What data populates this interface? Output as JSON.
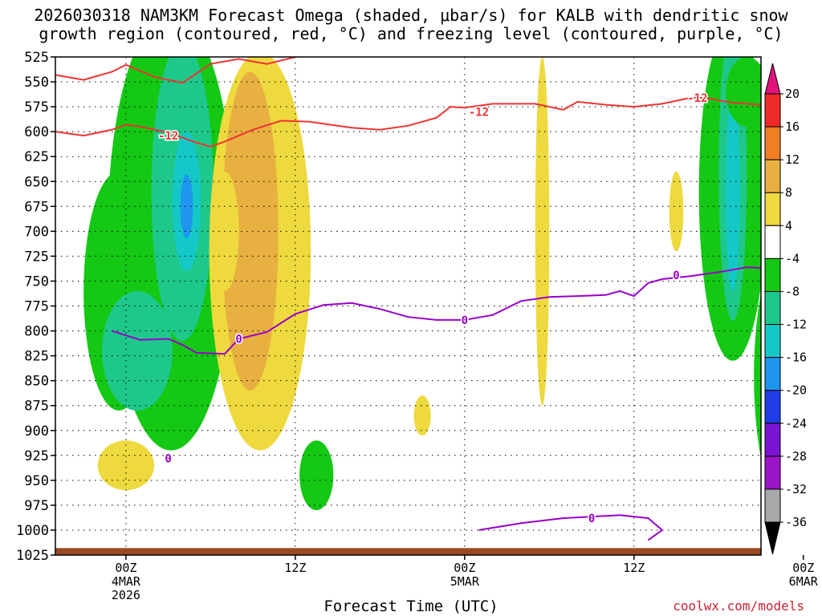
{
  "title_line1": "2026030318 NAM3KM Forecast Omega (shaded, μbar/s) for KALB with dendritic snow",
  "title_line2": "growth region (contoured, red, °C) and freezing level (contoured, purple, °C)",
  "xlabel": "Forecast Time (UTC)",
  "credit": "coolwx.com/models",
  "chart_data": {
    "type": "heatmap",
    "title": "2026030318 NAM3KM Forecast Omega (shaded, μbar/s) for KALB with dendritic snow growth region (contoured, red, °C) and freezing level (contoured, purple, °C)",
    "xlabel": "Forecast Time (UTC)",
    "ylabel": "Pressure (hPa)",
    "yticks": [
      525,
      550,
      575,
      600,
      625,
      650,
      675,
      700,
      725,
      750,
      775,
      800,
      825,
      850,
      875,
      900,
      925,
      950,
      975,
      1000,
      1025
    ],
    "ylim": [
      525,
      1025
    ],
    "xlim_hours": [
      -5,
      45
    ],
    "xticks": [
      {
        "hour": 0,
        "lines": [
          "00Z",
          "4MAR",
          "2026"
        ]
      },
      {
        "hour": 12,
        "lines": [
          "12Z"
        ]
      },
      {
        "hour": 24,
        "lines": [
          "00Z",
          "5MAR"
        ]
      },
      {
        "hour": 36,
        "lines": [
          "12Z"
        ]
      },
      {
        "hour": 48,
        "lines": [
          "00Z",
          "6MAR"
        ]
      }
    ],
    "colorbar": {
      "label_values": [
        20,
        16,
        12,
        8,
        4,
        -4,
        -8,
        -12,
        -16,
        -20,
        -24,
        -28,
        -32,
        -36
      ],
      "bands": [
        {
          "range": [
            16,
            20
          ],
          "color": "#ef2a2a"
        },
        {
          "range": [
            12,
            16
          ],
          "color": "#f07e22"
        },
        {
          "range": [
            8,
            12
          ],
          "color": "#e8b040"
        },
        {
          "range": [
            4,
            8
          ],
          "color": "#eed93e"
        },
        {
          "range": [
            -4,
            4
          ],
          "color": "#ffffff"
        },
        {
          "range": [
            -8,
            -4
          ],
          "color": "#14c814"
        },
        {
          "range": [
            -12,
            -8
          ],
          "color": "#1ec88a"
        },
        {
          "range": [
            -16,
            -12
          ],
          "color": "#14c8c8"
        },
        {
          "range": [
            -20,
            -16
          ],
          "color": "#1e96f0"
        },
        {
          "range": [
            -24,
            -20
          ],
          "color": "#1e3ce8"
        },
        {
          "range": [
            -28,
            -24
          ],
          "color": "#7a14d2"
        },
        {
          "range": [
            -32,
            -28
          ],
          "color": "#9c14c8"
        },
        {
          "range": [
            -36,
            -32
          ],
          "color": "#a8a8a8"
        }
      ],
      "top_cap_color": "#e0147a",
      "bottom_cap_color": "#000000"
    },
    "omega_features": [
      {
        "name": "upward motion column near 04Z",
        "center_hour": 4.5,
        "p_range": [
          525,
          920
        ],
        "peak": -20
      },
      {
        "name": "subsidence column near 09Z",
        "center_hour": 9.5,
        "p_range": [
          525,
          860
        ],
        "peak": 12
      },
      {
        "name": "upward motion band near 43Z",
        "center_hour": 43,
        "p_range": [
          525,
          830
        ],
        "peak": -16
      },
      {
        "name": "upward motion near surface 47Z",
        "center_hour": 47,
        "p_range": [
          700,
          990
        ],
        "peak": -8
      }
    ],
    "contour_labels": [
      {
        "text": "-12",
        "hour": 3,
        "p": 604,
        "color": "#ee3333"
      },
      {
        "text": "-12",
        "hour": 25,
        "p": 580,
        "color": "#ee3333"
      },
      {
        "text": "-12",
        "hour": 40.5,
        "p": 566,
        "color": "#ee3333"
      },
      {
        "text": "0",
        "hour": 8,
        "p": 808,
        "color": "#9900cc"
      },
      {
        "text": "0",
        "hour": 24,
        "p": 789,
        "color": "#9900cc"
      },
      {
        "text": "0",
        "hour": 39,
        "p": 744,
        "color": "#9900cc"
      },
      {
        "text": "0",
        "hour": 3,
        "p": 928,
        "color": "#9900cc"
      },
      {
        "text": "0",
        "hour": 33,
        "p": 988,
        "color": "#9900cc"
      }
    ],
    "dgz_top_isotherm_minus12": [
      [
        -5,
        543
      ],
      [
        -3,
        548
      ],
      [
        -1,
        540
      ],
      [
        0,
        533
      ],
      [
        2,
        545
      ],
      [
        4,
        551
      ],
      [
        6,
        532
      ],
      [
        8,
        527
      ],
      [
        10,
        532
      ],
      [
        12,
        525
      ]
    ],
    "dgz_bottom_isotherm_minus12": [
      [
        -5,
        600
      ],
      [
        -3,
        604
      ],
      [
        -1,
        598
      ],
      [
        0,
        593
      ],
      [
        1,
        595
      ],
      [
        3,
        601
      ],
      [
        5,
        611
      ],
      [
        6,
        615
      ],
      [
        7,
        610
      ],
      [
        9,
        598
      ],
      [
        11,
        589
      ],
      [
        13,
        590
      ],
      [
        16,
        596
      ],
      [
        18,
        598
      ],
      [
        20,
        594
      ],
      [
        22,
        586
      ],
      [
        23,
        575
      ],
      [
        24,
        576
      ],
      [
        26,
        572
      ],
      [
        29,
        572
      ],
      [
        31,
        578
      ],
      [
        32,
        570
      ],
      [
        34,
        573
      ],
      [
        36,
        575
      ],
      [
        38,
        572
      ],
      [
        40,
        566
      ],
      [
        41,
        566
      ],
      [
        43,
        571
      ],
      [
        45,
        573
      ],
      [
        46,
        566
      ],
      [
        47,
        557
      ],
      [
        48,
        551
      ],
      [
        49,
        557
      ],
      [
        50,
        560
      ],
      [
        52,
        553
      ],
      [
        54,
        549
      ],
      [
        55,
        553
      ]
    ],
    "freezing_level_0C": [
      [
        -1,
        800
      ],
      [
        1,
        809
      ],
      [
        3,
        808
      ],
      [
        4,
        814
      ],
      [
        5,
        822
      ],
      [
        7,
        823
      ],
      [
        8,
        808
      ],
      [
        10,
        801
      ],
      [
        12,
        783
      ],
      [
        14,
        774
      ],
      [
        16,
        772
      ],
      [
        18,
        778
      ],
      [
        20,
        786
      ],
      [
        22,
        789
      ],
      [
        24,
        789
      ],
      [
        26,
        784
      ],
      [
        28,
        770
      ],
      [
        30,
        766
      ],
      [
        32,
        765
      ],
      [
        34,
        764
      ],
      [
        35,
        760
      ],
      [
        36,
        765
      ],
      [
        37,
        752
      ],
      [
        38,
        748
      ],
      [
        40,
        745
      ],
      [
        42,
        741
      ],
      [
        44,
        736
      ],
      [
        46,
        738
      ],
      [
        48,
        730
      ],
      [
        50,
        724
      ],
      [
        52,
        727
      ],
      [
        55,
        720
      ]
    ],
    "near_surface_0C": [
      [
        25,
        1000
      ],
      [
        28,
        993
      ],
      [
        31,
        988
      ],
      [
        35,
        985
      ],
      [
        37,
        988
      ],
      [
        38,
        1000
      ],
      [
        37,
        1010
      ]
    ],
    "ground_pressure": 1018
  }
}
